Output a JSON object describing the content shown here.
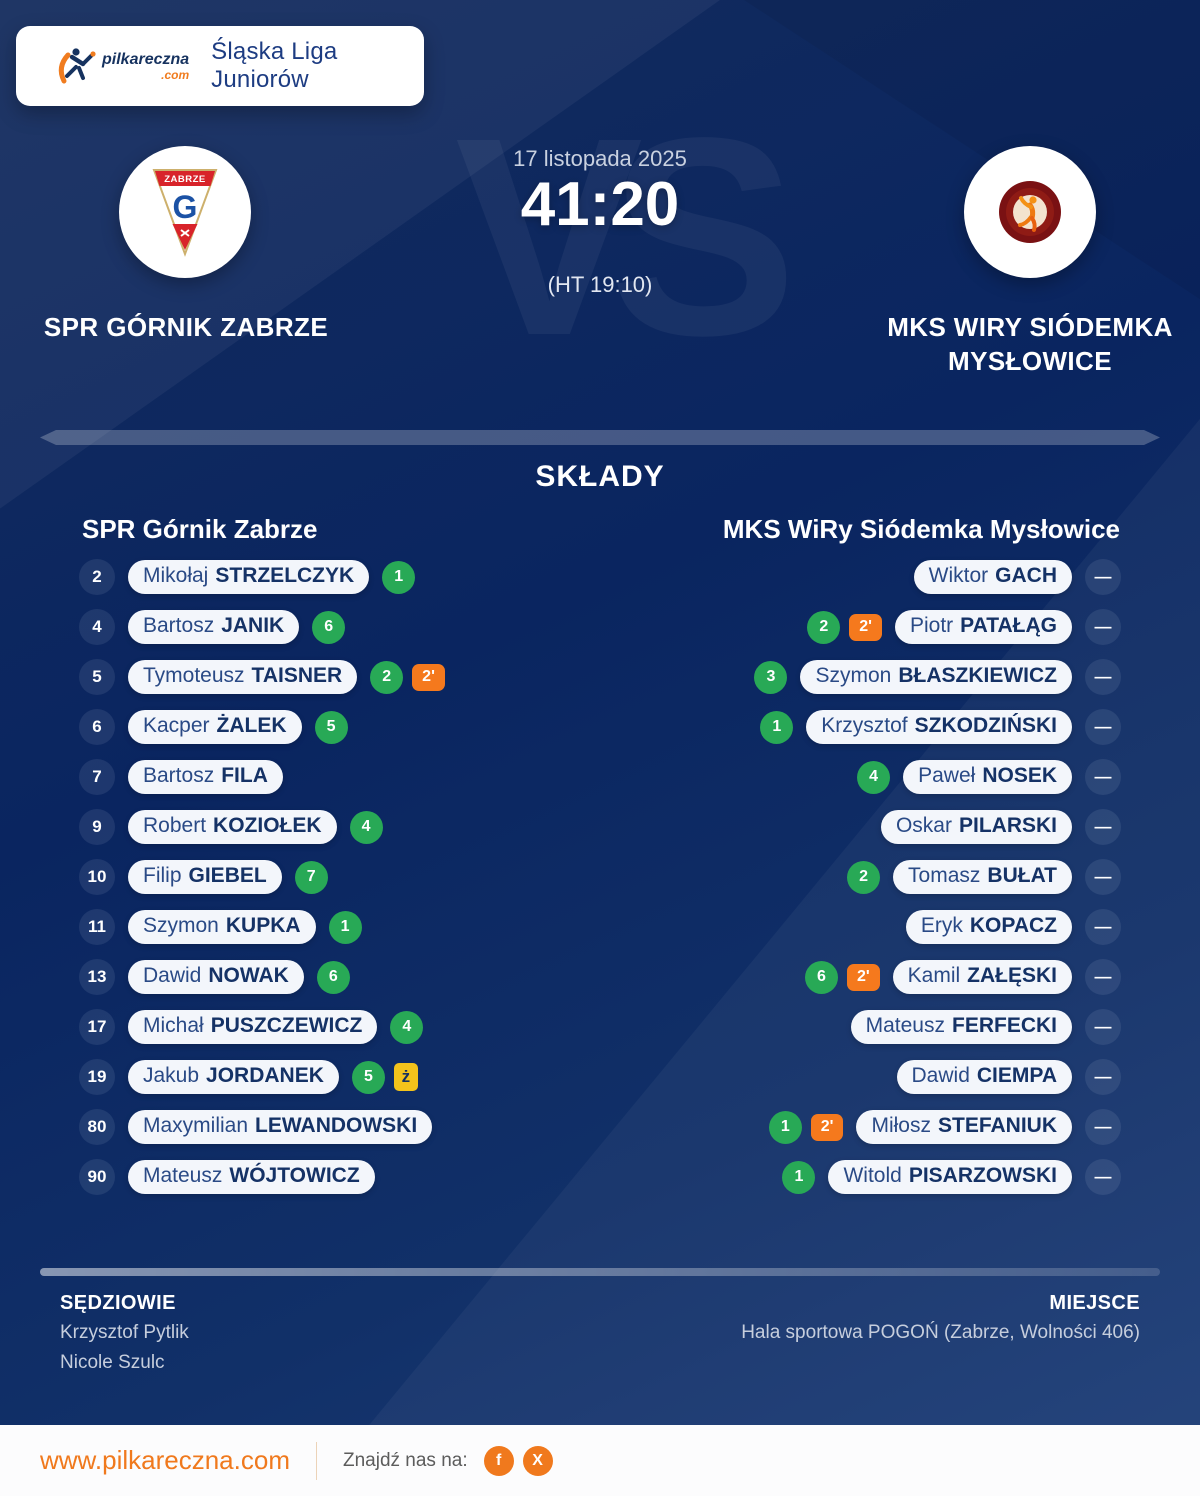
{
  "header": {
    "league": "Śląska Liga Juniorów",
    "brand": "pilkareczna",
    "brand_tld": ".com"
  },
  "match": {
    "date": "17 listopada 2025",
    "score": "41:20",
    "halftime": "(HT 19:10)",
    "vs_watermark": "VS",
    "home_name": "SPR GÓRNIK ZABRZE",
    "away_name": "MKS WIRY SIÓDEMKA MYSŁOWICE"
  },
  "lineups": {
    "title": "SKŁADY",
    "home_header": "SPR Górnik Zabrze",
    "away_header": "MKS WiRy Siódemka Mysłowice",
    "home": [
      {
        "number": "2",
        "first": "Mikołaj",
        "last": "STRZELCZYK",
        "goals": "1"
      },
      {
        "number": "4",
        "first": "Bartosz",
        "last": "JANIK",
        "goals": "6"
      },
      {
        "number": "5",
        "first": "Tymoteusz",
        "last": "TAISNER",
        "goals": "2",
        "susp": "2'"
      },
      {
        "number": "6",
        "first": "Kacper",
        "last": "ŻALEK",
        "goals": "5"
      },
      {
        "number": "7",
        "first": "Bartosz",
        "last": "FILA"
      },
      {
        "number": "9",
        "first": "Robert",
        "last": "KOZIOŁEK",
        "goals": "4"
      },
      {
        "number": "10",
        "first": "Filip",
        "last": "GIEBEL",
        "goals": "7"
      },
      {
        "number": "11",
        "first": "Szymon",
        "last": "KUPKA",
        "goals": "1"
      },
      {
        "number": "13",
        "first": "Dawid",
        "last": "NOWAK",
        "goals": "6"
      },
      {
        "number": "17",
        "first": "Michał",
        "last": "PUSZCZEWICZ",
        "goals": "4"
      },
      {
        "number": "19",
        "first": "Jakub",
        "last": "JORDANEK",
        "goals": "5",
        "yellow": "ż"
      },
      {
        "number": "80",
        "first": "Maxymilian",
        "last": "LEWANDOWSKI"
      },
      {
        "number": "90",
        "first": "Mateusz",
        "last": "WÓJTOWICZ"
      }
    ],
    "away": [
      {
        "number": "—",
        "first": "Wiktor",
        "last": "GACH"
      },
      {
        "number": "—",
        "first": "Piotr",
        "last": "PATAŁĄG",
        "goals": "2",
        "susp": "2'"
      },
      {
        "number": "—",
        "first": "Szymon",
        "last": "BŁASZKIEWICZ",
        "goals": "3"
      },
      {
        "number": "—",
        "first": "Krzysztof",
        "last": "SZKODZIŃSKI",
        "goals": "1"
      },
      {
        "number": "—",
        "first": "Paweł",
        "last": "NOSEK",
        "goals": "4"
      },
      {
        "number": "—",
        "first": "Oskar",
        "last": "PILARSKI"
      },
      {
        "number": "—",
        "first": "Tomasz",
        "last": "BUŁAT",
        "goals": "2"
      },
      {
        "number": "—",
        "first": "Eryk",
        "last": "KOPACZ"
      },
      {
        "number": "—",
        "first": "Kamil",
        "last": "ZAŁĘSKI",
        "goals": "6",
        "susp": "2'"
      },
      {
        "number": "—",
        "first": "Mateusz",
        "last": "FERFECKI"
      },
      {
        "number": "—",
        "first": "Dawid",
        "last": "CIEMPA"
      },
      {
        "number": "—",
        "first": "Miłosz",
        "last": "STEFANIUK",
        "goals": "1",
        "susp": "2'"
      },
      {
        "number": "—",
        "first": "Witold",
        "last": "PISARZOWSKI",
        "goals": "1"
      }
    ]
  },
  "officials": {
    "referees_label": "SĘDZIOWIE",
    "referees": [
      "Krzysztof Pytlik",
      "Nicole Szulc"
    ],
    "venue_label": "MIEJSCE",
    "venue": "Hala sportowa POGOŃ (Zabrze, Wolności 406)"
  },
  "footer": {
    "url": "www.pilkareczna.com",
    "find_us": "Znajdź nas na:",
    "facebook_glyph": "f",
    "x_glyph": "X"
  },
  "colors": {
    "background_navy": "#0a2560",
    "goal_green": "#28a956",
    "suspension_orange": "#f5791d",
    "yellow_card": "#f3c31b",
    "accent_orange": "#f0791d",
    "pill_background": "#f3f6fb",
    "pill_text_navy": "#153266"
  }
}
